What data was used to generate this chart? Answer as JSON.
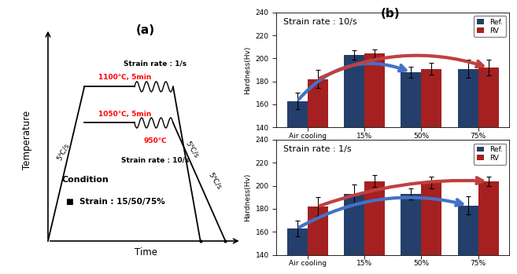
{
  "panel_a": {
    "title": "(a)",
    "xlabel": "Time",
    "ylabel": "Temperature",
    "heat_rate_label": "5℃/s",
    "cool_rate_label1": "5℃/s",
    "cool_rate_label2": "5℃/s",
    "upper_temp_label": "1100℃, 5min",
    "lower_temp_label": "1050℃, 5min",
    "deform_temp_label": "950℃",
    "strain_rate_1s_label": "Strain rate : 1/s",
    "strain_rate_10s_label": "Strain rate : 10/s",
    "condition_title": "Condition",
    "condition_strain": "Strain : 15/50/75%"
  },
  "panel_b_top": {
    "title": "Strain rate : 10/s",
    "categories": [
      "Air cooling",
      "15%",
      "50%",
      "75%"
    ],
    "ref_values": [
      163,
      203,
      188,
      191
    ],
    "rv_values": [
      182,
      204,
      191,
      192
    ],
    "ref_errors": [
      7,
      4,
      5,
      8
    ],
    "rv_errors": [
      8,
      4,
      5,
      7
    ],
    "ylim": [
      140,
      240
    ],
    "yticks": [
      140,
      160,
      180,
      200,
      220,
      240
    ],
    "ylabel": "Hardness(Hv)",
    "ref_color": "#243F6B",
    "rv_color": "#A52020"
  },
  "panel_b_bottom": {
    "title": "Strain rate : 1/s",
    "categories": [
      "Air cooling",
      "15%",
      "50%",
      "75%"
    ],
    "ref_values": [
      163,
      193,
      193,
      183
    ],
    "rv_values": [
      182,
      204,
      203,
      204
    ],
    "ref_errors": [
      7,
      8,
      5,
      8
    ],
    "rv_errors": [
      8,
      5,
      5,
      4
    ],
    "ylim": [
      140,
      240
    ],
    "yticks": [
      140,
      160,
      180,
      200,
      220,
      240
    ],
    "ylabel": "Hardness(Hv)",
    "ref_color": "#243F6B",
    "rv_color": "#A52020"
  },
  "legend": {
    "ref_label": "Ref.",
    "rv_label": "RV"
  }
}
